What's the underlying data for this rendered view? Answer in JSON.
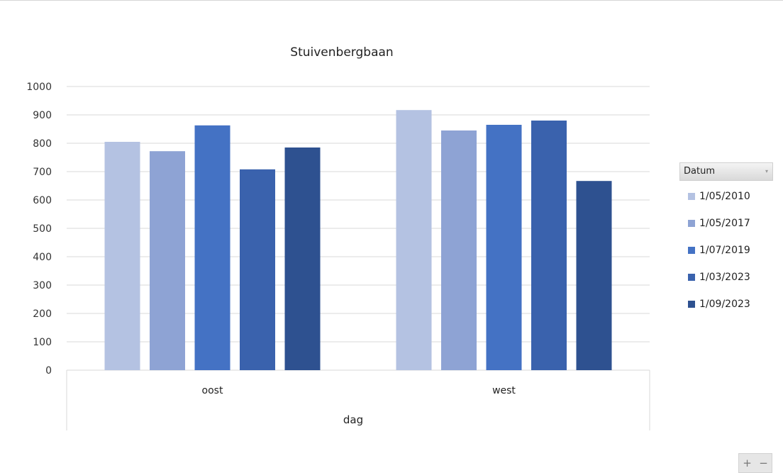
{
  "chart_data": {
    "type": "bar",
    "title": "Stuivenbergbaan",
    "xlabel": "dag",
    "ylabel": "",
    "ylim": [
      0,
      1000
    ],
    "yticks": [
      0,
      100,
      200,
      300,
      400,
      500,
      600,
      700,
      800,
      900,
      1000
    ],
    "grid": true,
    "legend_placement": "right",
    "legend_title": "Datum",
    "categories": [
      "oost",
      "west"
    ],
    "series": [
      {
        "name": "1/05/2010",
        "color": "#b4c2e2",
        "values": [
          805,
          917
        ]
      },
      {
        "name": "1/05/2017",
        "color": "#8ea3d4",
        "values": [
          772,
          845
        ]
      },
      {
        "name": "1/07/2019",
        "color": "#4472c4",
        "values": [
          863,
          865
        ]
      },
      {
        "name": "1/03/2023",
        "color": "#3a62ad",
        "values": [
          708,
          880
        ]
      },
      {
        "name": "1/09/2023",
        "color": "#2e5190",
        "values": [
          785,
          667
        ]
      }
    ]
  },
  "controls": {
    "zoom_in": "+",
    "zoom_out": "−"
  }
}
